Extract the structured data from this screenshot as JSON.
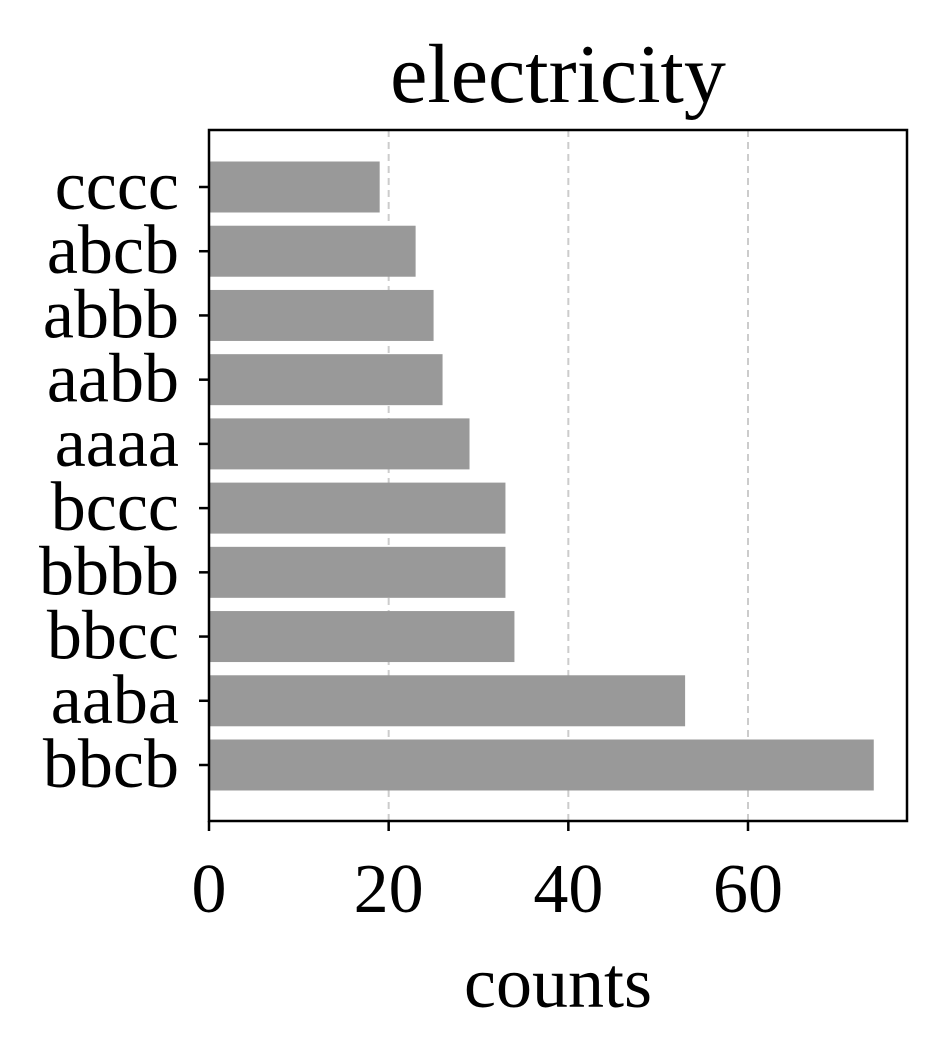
{
  "chart_data": {
    "type": "bar",
    "orientation": "horizontal",
    "title": "electricity",
    "xlabel": "counts",
    "ylabel": "",
    "categories": [
      "cccc",
      "abcb",
      "abbb",
      "aabb",
      "aaaa",
      "bccc",
      "bbbb",
      "bbcc",
      "aaba",
      "bbcb"
    ],
    "values": [
      19,
      23,
      25,
      26,
      29,
      33,
      33,
      34,
      53,
      74
    ],
    "xlim": [
      0,
      77.7
    ],
    "xticks": [
      0,
      20,
      40,
      60
    ],
    "grid": {
      "x": true,
      "y": false,
      "style": "dashed"
    },
    "bar_color": "#999999",
    "grid_color": "#cccccc"
  }
}
